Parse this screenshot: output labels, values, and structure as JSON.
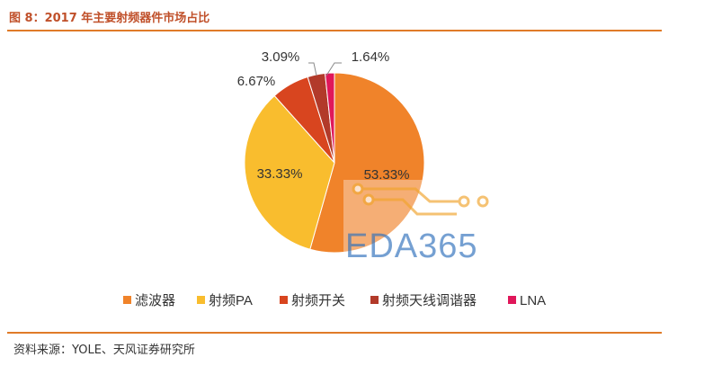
{
  "header": {
    "title": "图 8：2017 年主要射频器件市场占比"
  },
  "footer": {
    "source": "资料来源：YOLE、天风证券研究所"
  },
  "watermark": {
    "text": "EDA365"
  },
  "chart_data": {
    "type": "pie",
    "title": "",
    "categories": [
      "滤波器",
      "射频PA",
      "射频开关",
      "射频天线调谐器",
      "LNA"
    ],
    "values": [
      53.33,
      33.33,
      6.67,
      3.09,
      1.64
    ],
    "labels": [
      "53.33%",
      "33.33%",
      "6.67%",
      "3.09%",
      "1.64%"
    ],
    "colors": [
      "#f0832a",
      "#f9bd2e",
      "#d8451f",
      "#b23a2a",
      "#e0175a"
    ],
    "legend_position": "bottom"
  }
}
